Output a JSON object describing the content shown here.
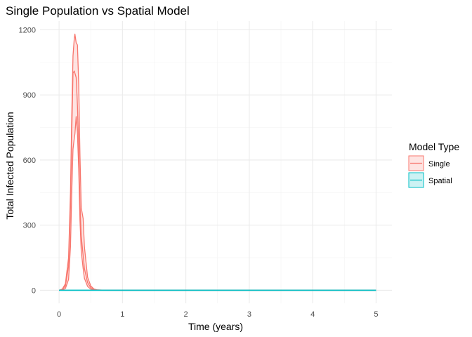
{
  "chart_data": {
    "type": "area",
    "title": "Single Population vs Spatial Model",
    "xlabel": "Time (years)",
    "ylabel": "Total Infected Population",
    "xlim": [
      -0.3,
      5.25
    ],
    "ylim": [
      -60,
      1240
    ],
    "x_ticks": [
      0,
      1,
      2,
      3,
      4,
      5
    ],
    "y_ticks": [
      0,
      300,
      600,
      900,
      1200
    ],
    "x_tick_labels": [
      "0",
      "1",
      "2",
      "3",
      "4",
      "5"
    ],
    "y_tick_labels": [
      "0",
      "300",
      "600",
      "900",
      "1200"
    ],
    "grid": true,
    "legend": {
      "title": "Model Type",
      "position": "right",
      "entries": [
        "Single",
        "Spatial"
      ]
    },
    "colors": {
      "Single": "#f8766d",
      "Spatial": "#00bfc4"
    },
    "series": [
      {
        "name": "Single",
        "ribbon": true,
        "x": [
          0.0,
          0.05,
          0.1,
          0.15,
          0.18,
          0.2,
          0.22,
          0.24,
          0.25,
          0.27,
          0.29,
          0.31,
          0.33,
          0.35,
          0.38,
          0.4,
          0.45,
          0.5,
          0.55,
          0.6,
          0.7,
          1.0,
          5.0
        ],
        "upper": [
          0,
          5,
          30,
          150,
          450,
          800,
          1080,
          1160,
          1180,
          1140,
          1130,
          950,
          620,
          380,
          330,
          200,
          60,
          20,
          6,
          2,
          0.5,
          0,
          0
        ],
        "mean": [
          0,
          3,
          20,
          110,
          380,
          720,
          1000,
          1010,
          1000,
          980,
          850,
          650,
          400,
          250,
          160,
          100,
          35,
          12,
          4,
          1,
          0.3,
          0,
          0
        ],
        "lower": [
          0,
          1,
          8,
          50,
          200,
          450,
          650,
          700,
          720,
          800,
          720,
          560,
          320,
          180,
          100,
          55,
          18,
          5,
          1.5,
          0.5,
          0,
          0,
          0
        ]
      },
      {
        "name": "Spatial",
        "ribbon": true,
        "x": [
          0.0,
          5.0
        ],
        "upper": [
          0,
          0
        ],
        "mean": [
          0,
          0
        ],
        "lower": [
          0,
          0
        ]
      }
    ]
  }
}
